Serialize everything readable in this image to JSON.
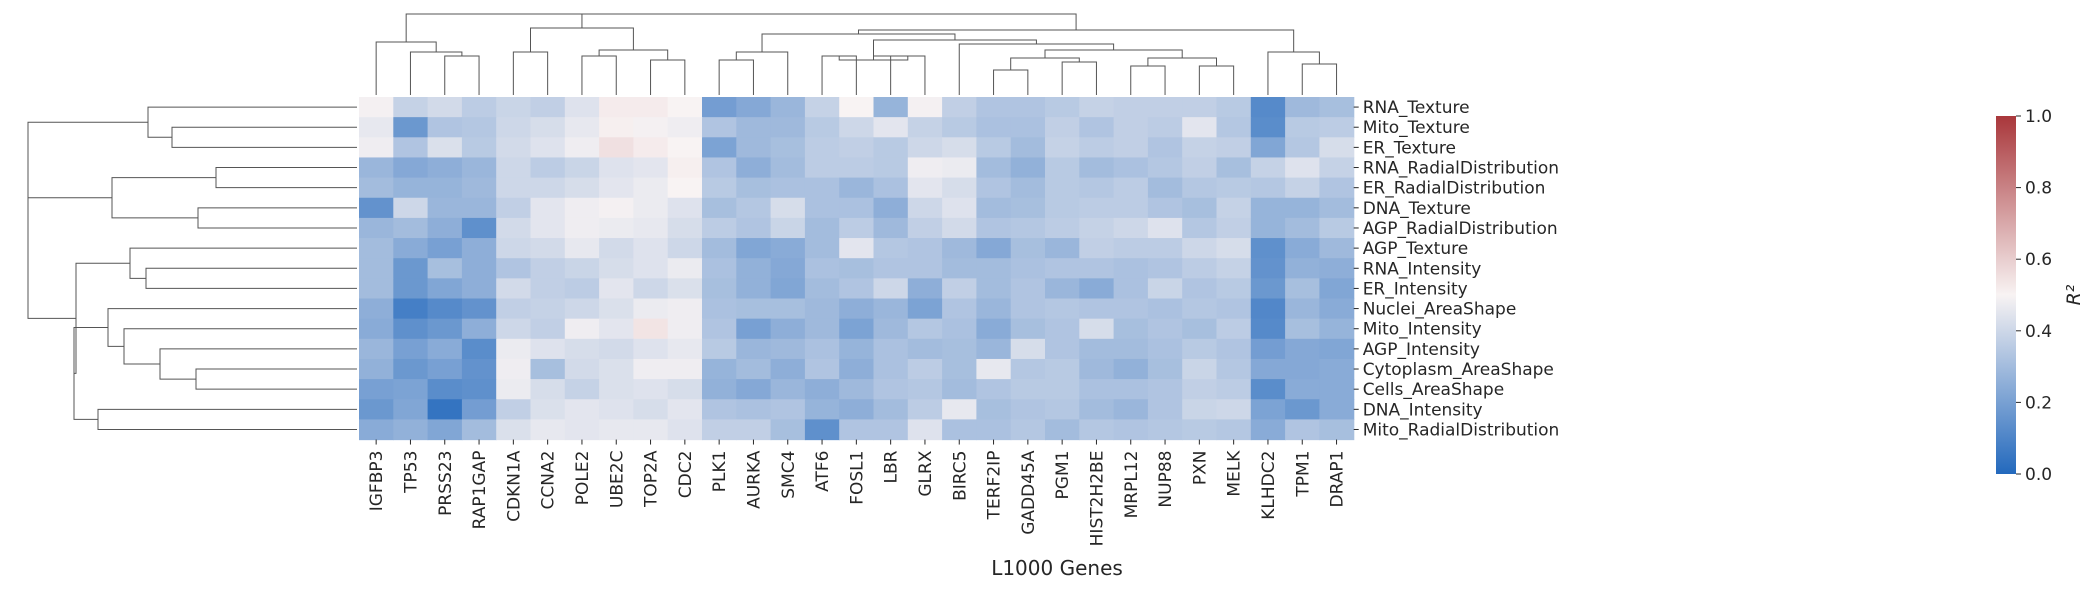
{
  "chart_data": {
    "type": "heatmap",
    "title": "",
    "xlabel": "L1000 Genes",
    "ylabel": "",
    "columns": [
      "IGFBP3",
      "TP53",
      "PRSS23",
      "RAP1GAP",
      "CDKN1A",
      "CCNA2",
      "POLE2",
      "UBE2C",
      "TOP2A",
      "CDC2",
      "PLK1",
      "AURKA",
      "SMC4",
      "ATF6",
      "FOSL1",
      "LBR",
      "GLRX",
      "BIRC5",
      "TERF2IP",
      "GADD45A",
      "PGM1",
      "HIST2H2BE",
      "MRPL12",
      "NUP88",
      "PXN",
      "MELK",
      "KLHDC2",
      "TPM1",
      "DRAP1"
    ],
    "rows": [
      "RNA_Texture",
      "Mito_Texture",
      "ER_Texture",
      "RNA_RadialDistribution",
      "ER_RadialDistribution",
      "DNA_Texture",
      "AGP_RadialDistribution",
      "AGP_Texture",
      "RNA_Intensity",
      "ER_Intensity",
      "Nuclei_AreaShape",
      "Mito_Intensity",
      "AGP_Intensity",
      "Cytoplasm_AreaShape",
      "Cells_AreaShape",
      "DNA_Intensity",
      "Mito_RadialDistribution"
    ],
    "values": [
      [
        0.49,
        0.38,
        0.41,
        0.36,
        0.39,
        0.37,
        0.44,
        0.52,
        0.52,
        0.5,
        0.19,
        0.23,
        0.28,
        0.38,
        0.5,
        0.27,
        0.49,
        0.37,
        0.33,
        0.33,
        0.35,
        0.38,
        0.37,
        0.37,
        0.37,
        0.35,
        0.12,
        0.29,
        0.31
      ],
      [
        0.46,
        0.17,
        0.33,
        0.34,
        0.4,
        0.42,
        0.46,
        0.51,
        0.49,
        0.48,
        0.33,
        0.29,
        0.29,
        0.35,
        0.4,
        0.45,
        0.38,
        0.35,
        0.32,
        0.32,
        0.37,
        0.33,
        0.37,
        0.36,
        0.45,
        0.34,
        0.13,
        0.35,
        0.36
      ],
      [
        0.48,
        0.33,
        0.43,
        0.35,
        0.41,
        0.44,
        0.48,
        0.55,
        0.52,
        0.5,
        0.21,
        0.29,
        0.31,
        0.36,
        0.37,
        0.35,
        0.4,
        0.42,
        0.35,
        0.3,
        0.38,
        0.36,
        0.37,
        0.33,
        0.38,
        0.37,
        0.22,
        0.34,
        0.42
      ],
      [
        0.28,
        0.23,
        0.25,
        0.28,
        0.4,
        0.36,
        0.39,
        0.44,
        0.45,
        0.51,
        0.33,
        0.25,
        0.3,
        0.36,
        0.36,
        0.35,
        0.48,
        0.47,
        0.3,
        0.26,
        0.35,
        0.3,
        0.32,
        0.34,
        0.37,
        0.31,
        0.38,
        0.44,
        0.38
      ],
      [
        0.3,
        0.27,
        0.27,
        0.29,
        0.4,
        0.4,
        0.42,
        0.45,
        0.47,
        0.5,
        0.35,
        0.31,
        0.32,
        0.32,
        0.28,
        0.32,
        0.45,
        0.42,
        0.33,
        0.3,
        0.35,
        0.34,
        0.36,
        0.3,
        0.34,
        0.35,
        0.34,
        0.38,
        0.33
      ],
      [
        0.15,
        0.4,
        0.28,
        0.28,
        0.37,
        0.45,
        0.48,
        0.49,
        0.47,
        0.44,
        0.31,
        0.34,
        0.42,
        0.32,
        0.32,
        0.25,
        0.4,
        0.44,
        0.3,
        0.31,
        0.35,
        0.36,
        0.36,
        0.33,
        0.31,
        0.38,
        0.27,
        0.27,
        0.3
      ],
      [
        0.28,
        0.3,
        0.25,
        0.14,
        0.41,
        0.45,
        0.48,
        0.47,
        0.46,
        0.42,
        0.36,
        0.33,
        0.39,
        0.3,
        0.36,
        0.29,
        0.37,
        0.41,
        0.33,
        0.34,
        0.36,
        0.38,
        0.4,
        0.44,
        0.34,
        0.37,
        0.27,
        0.3,
        0.35
      ],
      [
        0.3,
        0.24,
        0.2,
        0.25,
        0.4,
        0.41,
        0.46,
        0.41,
        0.44,
        0.4,
        0.3,
        0.22,
        0.24,
        0.3,
        0.45,
        0.34,
        0.33,
        0.29,
        0.23,
        0.31,
        0.28,
        0.37,
        0.36,
        0.36,
        0.4,
        0.42,
        0.14,
        0.24,
        0.29
      ],
      [
        0.3,
        0.17,
        0.31,
        0.25,
        0.33,
        0.37,
        0.39,
        0.42,
        0.44,
        0.47,
        0.32,
        0.26,
        0.23,
        0.32,
        0.31,
        0.33,
        0.33,
        0.3,
        0.3,
        0.32,
        0.33,
        0.33,
        0.32,
        0.33,
        0.36,
        0.38,
        0.15,
        0.26,
        0.25
      ],
      [
        0.3,
        0.17,
        0.22,
        0.25,
        0.41,
        0.37,
        0.36,
        0.45,
        0.4,
        0.43,
        0.31,
        0.26,
        0.22,
        0.3,
        0.33,
        0.4,
        0.25,
        0.37,
        0.3,
        0.33,
        0.28,
        0.24,
        0.32,
        0.39,
        0.33,
        0.35,
        0.17,
        0.31,
        0.22
      ],
      [
        0.25,
        0.08,
        0.12,
        0.15,
        0.37,
        0.38,
        0.4,
        0.43,
        0.47,
        0.48,
        0.32,
        0.31,
        0.31,
        0.29,
        0.25,
        0.28,
        0.21,
        0.33,
        0.28,
        0.33,
        0.34,
        0.33,
        0.33,
        0.32,
        0.34,
        0.33,
        0.11,
        0.28,
        0.24
      ],
      [
        0.24,
        0.14,
        0.17,
        0.25,
        0.4,
        0.37,
        0.48,
        0.45,
        0.54,
        0.48,
        0.33,
        0.2,
        0.25,
        0.29,
        0.21,
        0.29,
        0.34,
        0.32,
        0.24,
        0.31,
        0.33,
        0.42,
        0.31,
        0.33,
        0.31,
        0.36,
        0.12,
        0.31,
        0.27
      ],
      [
        0.28,
        0.2,
        0.24,
        0.13,
        0.47,
        0.44,
        0.42,
        0.41,
        0.44,
        0.46,
        0.35,
        0.28,
        0.29,
        0.32,
        0.27,
        0.32,
        0.3,
        0.31,
        0.28,
        0.42,
        0.33,
        0.3,
        0.3,
        0.32,
        0.35,
        0.33,
        0.19,
        0.23,
        0.22
      ],
      [
        0.26,
        0.17,
        0.2,
        0.15,
        0.48,
        0.31,
        0.41,
        0.43,
        0.48,
        0.48,
        0.27,
        0.3,
        0.25,
        0.33,
        0.25,
        0.32,
        0.36,
        0.31,
        0.46,
        0.34,
        0.35,
        0.29,
        0.26,
        0.31,
        0.39,
        0.34,
        0.23,
        0.23,
        0.24
      ],
      [
        0.2,
        0.21,
        0.13,
        0.14,
        0.47,
        0.42,
        0.38,
        0.43,
        0.44,
        0.42,
        0.26,
        0.23,
        0.28,
        0.25,
        0.29,
        0.33,
        0.34,
        0.3,
        0.33,
        0.35,
        0.35,
        0.32,
        0.32,
        0.33,
        0.37,
        0.36,
        0.13,
        0.24,
        0.24
      ],
      [
        0.17,
        0.22,
        0.04,
        0.19,
        0.37,
        0.43,
        0.45,
        0.44,
        0.42,
        0.45,
        0.33,
        0.32,
        0.33,
        0.27,
        0.25,
        0.3,
        0.36,
        0.46,
        0.31,
        0.33,
        0.34,
        0.3,
        0.28,
        0.33,
        0.39,
        0.4,
        0.21,
        0.17,
        0.24
      ],
      [
        0.24,
        0.26,
        0.22,
        0.3,
        0.43,
        0.46,
        0.45,
        0.46,
        0.46,
        0.44,
        0.37,
        0.37,
        0.31,
        0.14,
        0.33,
        0.33,
        0.44,
        0.32,
        0.32,
        0.34,
        0.3,
        0.34,
        0.33,
        0.34,
        0.35,
        0.34,
        0.24,
        0.33,
        0.31
      ]
    ],
    "colorbar": {
      "label": "R²",
      "range": [
        0.0,
        1.0
      ],
      "ticks": [
        "0.0",
        "0.2",
        "0.4",
        "0.6",
        "0.8",
        "1.0"
      ],
      "colormap": "vlag",
      "low_color": "#2369bd",
      "mid_color": "#f8f3f3",
      "high_color": "#a9373b"
    },
    "row_dendrogram": true,
    "col_dendrogram": true,
    "grid": false
  }
}
